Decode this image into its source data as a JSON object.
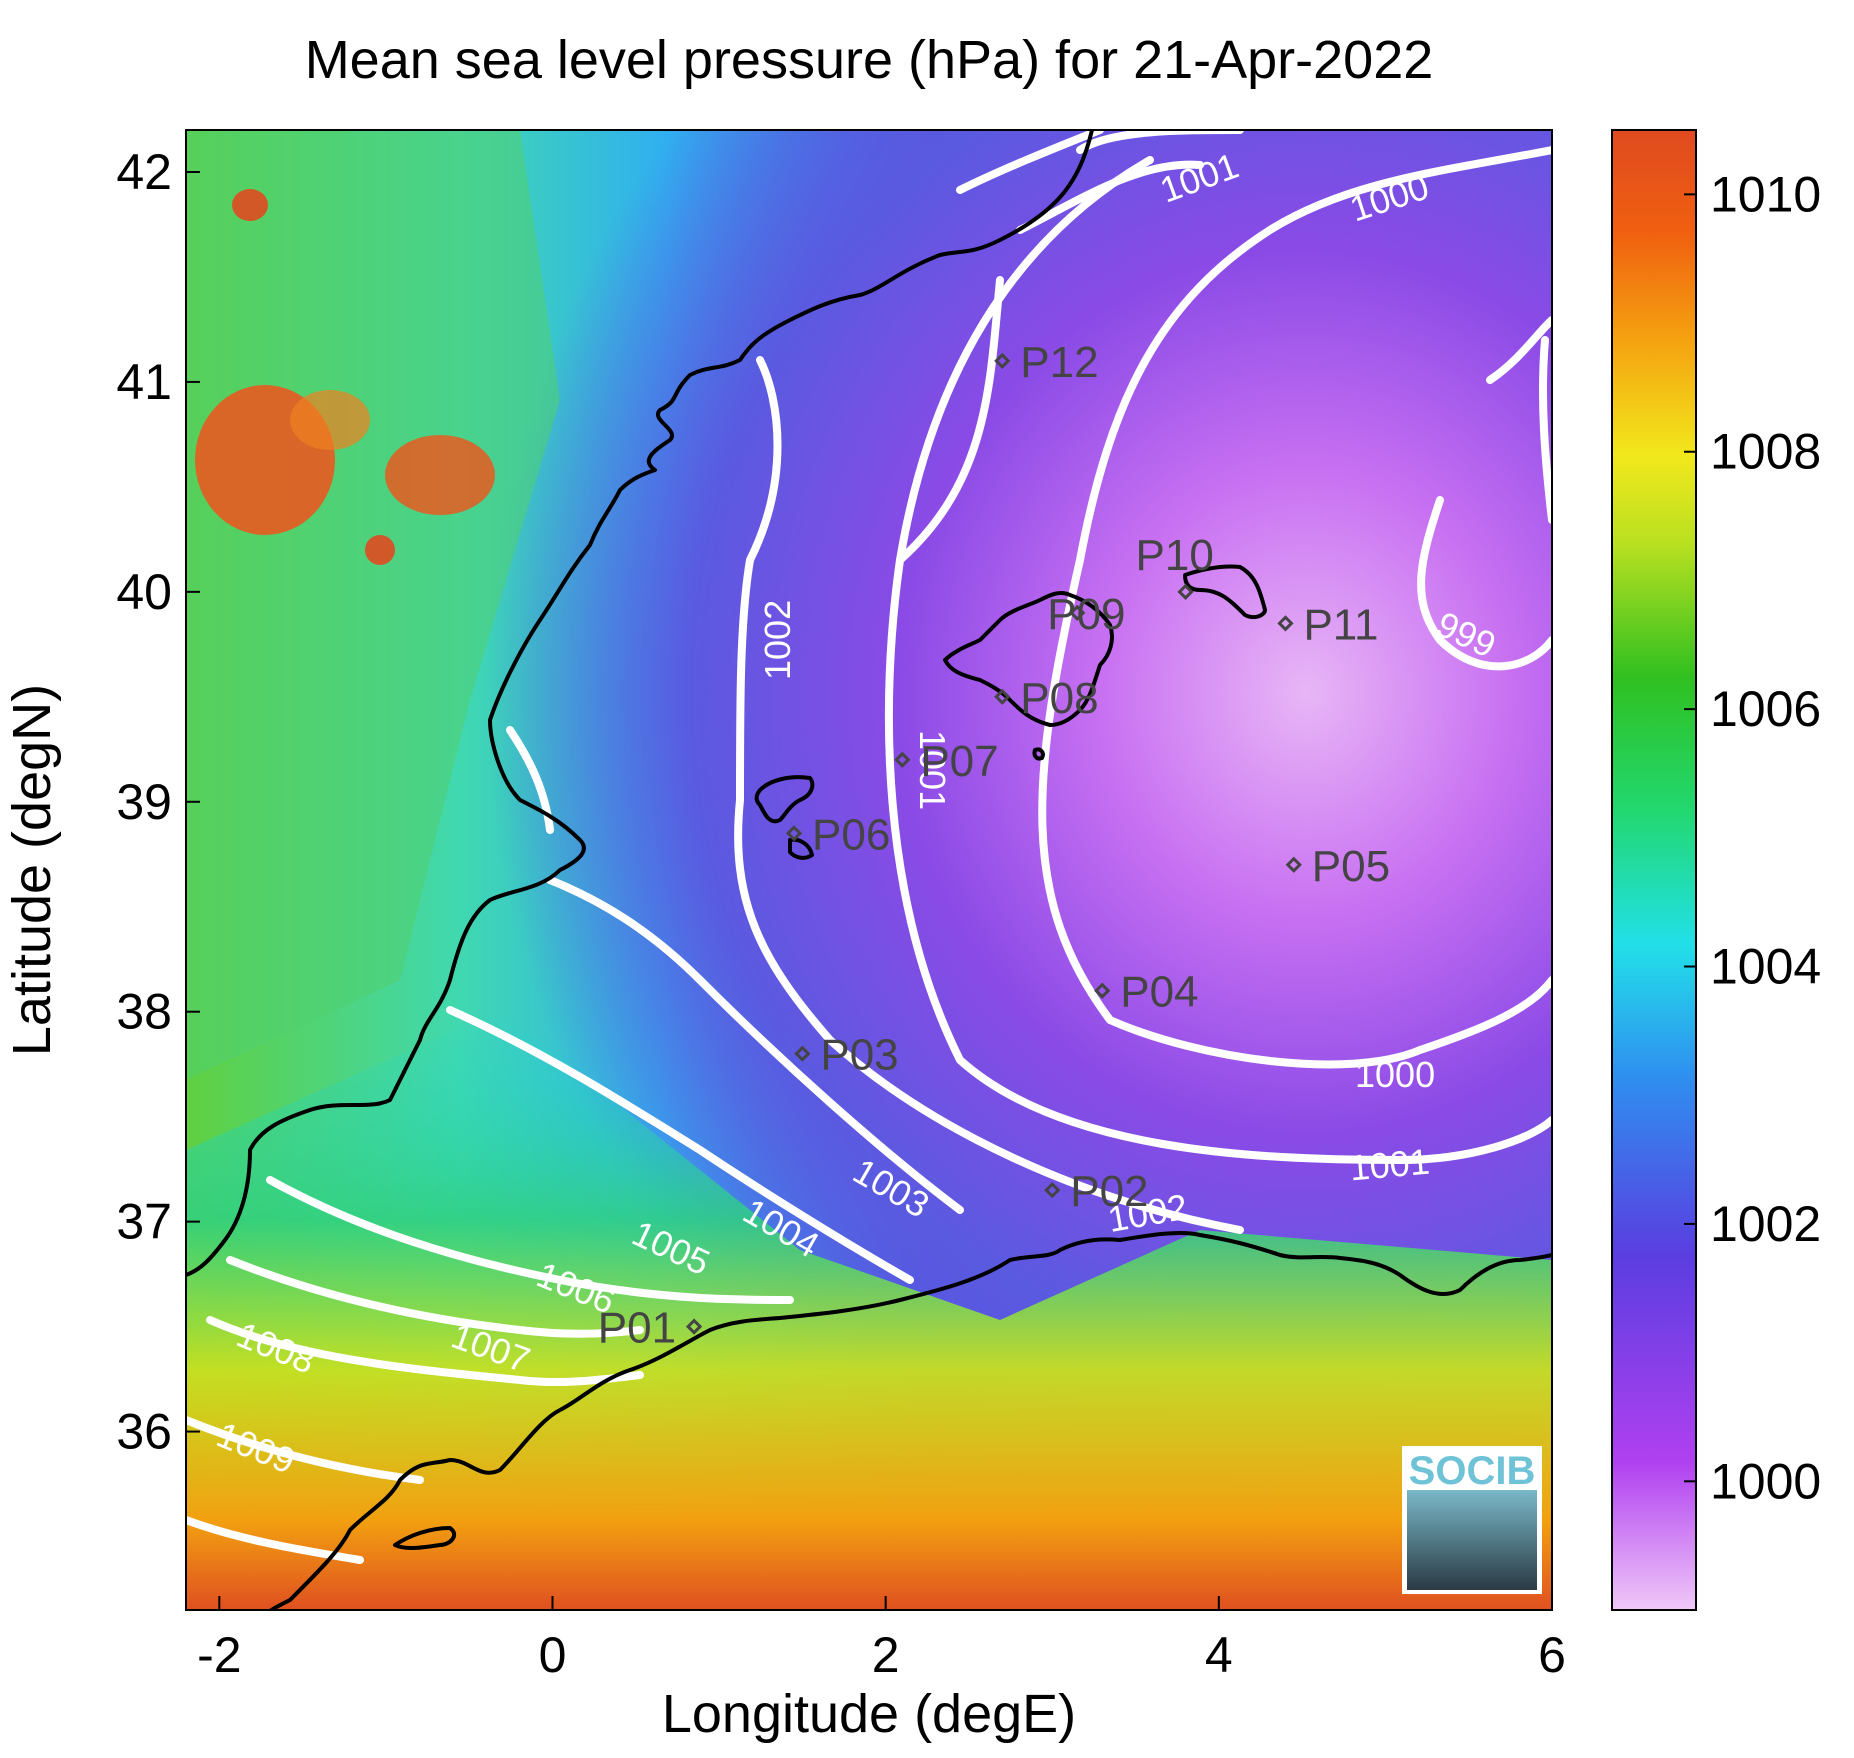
{
  "title": "Mean sea level pressure (hPa) for 21-Apr-2022",
  "xlabel": "Longitude (degE)",
  "ylabel": "Latitude (degN)",
  "x_ticks": [
    "-2",
    "0",
    "2",
    "4",
    "6"
  ],
  "y_ticks": [
    "36",
    "37",
    "38",
    "39",
    "40",
    "41",
    "42"
  ],
  "colorbar_ticks": [
    "1000",
    "1002",
    "1004",
    "1006",
    "1008",
    "1010"
  ],
  "colorbar_range": [
    999.0,
    1010.5
  ],
  "colors": {
    "high": "#e04a20",
    "mid_high": "#f2e81c",
    "mid": "#20d020",
    "mid_low": "#22e0e8",
    "low": "#5a3ee0",
    "lowest": "#eab8f5",
    "contour": "#ffffff",
    "coast": "#000000",
    "station": "#444444"
  },
  "chart_data": {
    "type": "heatmap",
    "title": "Mean sea level pressure (hPa) for 21-Apr-2022",
    "xlabel": "Longitude (degE)",
    "ylabel": "Latitude (degN)",
    "xlim": [
      -2.2,
      6.0
    ],
    "ylim": [
      35.15,
      42.2
    ],
    "value_unit": "hPa",
    "contour_levels": [
      "999",
      "1000",
      "1001",
      "1002",
      "1003",
      "1004",
      "1005",
      "1006",
      "1007",
      "1008",
      "1009"
    ],
    "stations": [
      {
        "name": "P01",
        "lon": 0.85,
        "lat": 36.5
      },
      {
        "name": "P02",
        "lon": 3.0,
        "lat": 37.15
      },
      {
        "name": "P03",
        "lon": 1.5,
        "lat": 37.8
      },
      {
        "name": "P04",
        "lon": 3.3,
        "lat": 38.1
      },
      {
        "name": "P05",
        "lon": 4.45,
        "lat": 38.7
      },
      {
        "name": "P06",
        "lon": 1.45,
        "lat": 38.85
      },
      {
        "name": "P07",
        "lon": 2.1,
        "lat": 39.2
      },
      {
        "name": "P08",
        "lon": 2.7,
        "lat": 39.5
      },
      {
        "name": "P09",
        "lon": 3.15,
        "lat": 39.9
      },
      {
        "name": "P10",
        "lon": 3.8,
        "lat": 40.0
      },
      {
        "name": "P11",
        "lon": 4.4,
        "lat": 39.85
      },
      {
        "name": "P12",
        "lon": 2.7,
        "lat": 41.1
      }
    ],
    "logo": "SOCIB"
  }
}
